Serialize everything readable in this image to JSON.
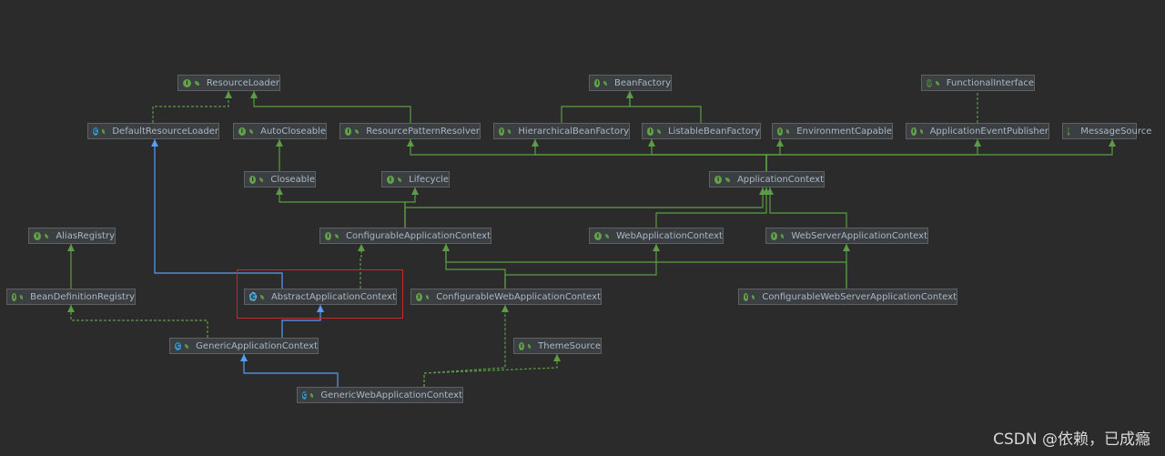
{
  "diagram": {
    "nodes": [
      {
        "id": "ResourceLoader",
        "label": "ResourceLoader",
        "kind": "interface"
      },
      {
        "id": "BeanFactory",
        "label": "BeanFactory",
        "kind": "interface"
      },
      {
        "id": "FunctionalInterface",
        "label": "FunctionalInterface",
        "kind": "annotation"
      },
      {
        "id": "DefaultResourceLoader",
        "label": "DefaultResourceLoader",
        "kind": "class"
      },
      {
        "id": "AutoCloseable",
        "label": "AutoCloseable",
        "kind": "interface"
      },
      {
        "id": "ResourcePatternResolver",
        "label": "ResourcePatternResolver",
        "kind": "interface"
      },
      {
        "id": "HierarchicalBeanFactory",
        "label": "HierarchicalBeanFactory",
        "kind": "interface"
      },
      {
        "id": "ListableBeanFactory",
        "label": "ListableBeanFactory",
        "kind": "interface"
      },
      {
        "id": "EnvironmentCapable",
        "label": "EnvironmentCapable",
        "kind": "interface"
      },
      {
        "id": "ApplicationEventPublisher",
        "label": "ApplicationEventPublisher",
        "kind": "interface"
      },
      {
        "id": "MessageSource",
        "label": "MessageSource",
        "kind": "interface"
      },
      {
        "id": "Closeable",
        "label": "Closeable",
        "kind": "interface"
      },
      {
        "id": "Lifecycle",
        "label": "Lifecycle",
        "kind": "interface"
      },
      {
        "id": "ApplicationContext",
        "label": "ApplicationContext",
        "kind": "interface"
      },
      {
        "id": "AliasRegistry",
        "label": "AliasRegistry",
        "kind": "interface"
      },
      {
        "id": "ConfigurableApplicationContext",
        "label": "ConfigurableApplicationContext",
        "kind": "interface"
      },
      {
        "id": "WebApplicationContext",
        "label": "WebApplicationContext",
        "kind": "interface"
      },
      {
        "id": "WebServerApplicationContext",
        "label": "WebServerApplicationContext",
        "kind": "interface"
      },
      {
        "id": "BeanDefinitionRegistry",
        "label": "BeanDefinitionRegistry",
        "kind": "interface"
      },
      {
        "id": "AbstractApplicationContext",
        "label": "AbstractApplicationContext",
        "kind": "abstract",
        "selected": true
      },
      {
        "id": "ConfigurableWebApplicationContext",
        "label": "ConfigurableWebApplicationContext",
        "kind": "interface"
      },
      {
        "id": "ConfigurableWebServerApplicationContext",
        "label": "ConfigurableWebServerApplicationContext",
        "kind": "interface"
      },
      {
        "id": "GenericApplicationContext",
        "label": "GenericApplicationContext",
        "kind": "class"
      },
      {
        "id": "ThemeSource",
        "label": "ThemeSource",
        "kind": "interface"
      },
      {
        "id": "GenericWebApplicationContext",
        "label": "GenericWebApplicationContext",
        "kind": "class"
      }
    ],
    "edges": [
      {
        "from": "DefaultResourceLoader",
        "to": "ResourceLoader",
        "type": "implements"
      },
      {
        "from": "ResourcePatternResolver",
        "to": "ResourceLoader",
        "type": "extends-interface"
      },
      {
        "from": "HierarchicalBeanFactory",
        "to": "BeanFactory",
        "type": "extends-interface"
      },
      {
        "from": "ListableBeanFactory",
        "to": "BeanFactory",
        "type": "extends-interface"
      },
      {
        "from": "ApplicationEventPublisher",
        "to": "FunctionalInterface",
        "type": "annotated"
      },
      {
        "from": "Closeable",
        "to": "AutoCloseable",
        "type": "extends-interface"
      },
      {
        "from": "ApplicationContext",
        "to": "ResourcePatternResolver",
        "type": "extends-interface"
      },
      {
        "from": "ApplicationContext",
        "to": "HierarchicalBeanFactory",
        "type": "extends-interface"
      },
      {
        "from": "ApplicationContext",
        "to": "ListableBeanFactory",
        "type": "extends-interface"
      },
      {
        "from": "ApplicationContext",
        "to": "EnvironmentCapable",
        "type": "extends-interface"
      },
      {
        "from": "ApplicationContext",
        "to": "ApplicationEventPublisher",
        "type": "extends-interface"
      },
      {
        "from": "ApplicationContext",
        "to": "MessageSource",
        "type": "extends-interface"
      },
      {
        "from": "ConfigurableApplicationContext",
        "to": "Closeable",
        "type": "extends-interface"
      },
      {
        "from": "ConfigurableApplicationContext",
        "to": "Lifecycle",
        "type": "extends-interface"
      },
      {
        "from": "ConfigurableApplicationContext",
        "to": "ApplicationContext",
        "type": "extends-interface"
      },
      {
        "from": "WebApplicationContext",
        "to": "ApplicationContext",
        "type": "extends-interface"
      },
      {
        "from": "WebServerApplicationContext",
        "to": "ApplicationContext",
        "type": "extends-interface"
      },
      {
        "from": "BeanDefinitionRegistry",
        "to": "AliasRegistry",
        "type": "extends-interface"
      },
      {
        "from": "AbstractApplicationContext",
        "to": "DefaultResourceLoader",
        "type": "extends-class"
      },
      {
        "from": "AbstractApplicationContext",
        "to": "ConfigurableApplicationContext",
        "type": "implements"
      },
      {
        "from": "ConfigurableWebApplicationContext",
        "to": "ConfigurableApplicationContext",
        "type": "extends-interface"
      },
      {
        "from": "ConfigurableWebApplicationContext",
        "to": "WebApplicationContext",
        "type": "extends-interface"
      },
      {
        "from": "ConfigurableWebServerApplicationContext",
        "to": "ConfigurableApplicationContext",
        "type": "extends-interface"
      },
      {
        "from": "ConfigurableWebServerApplicationContext",
        "to": "WebServerApplicationContext",
        "type": "extends-interface"
      },
      {
        "from": "GenericApplicationContext",
        "to": "AbstractApplicationContext",
        "type": "extends-class"
      },
      {
        "from": "GenericApplicationContext",
        "to": "BeanDefinitionRegistry",
        "type": "implements"
      },
      {
        "from": "GenericWebApplicationContext",
        "to": "GenericApplicationContext",
        "type": "extends-class"
      },
      {
        "from": "GenericWebApplicationContext",
        "to": "ConfigurableWebApplicationContext",
        "type": "implements"
      },
      {
        "from": "GenericWebApplicationContext",
        "to": "ThemeSource",
        "type": "implements"
      }
    ]
  },
  "colors": {
    "background": "#2b2b2b",
    "interface_edge": "#5c9c45",
    "class_edge": "#589df6",
    "selection": "#d0262a"
  },
  "watermark": "CSDN @依赖，已成瘾"
}
